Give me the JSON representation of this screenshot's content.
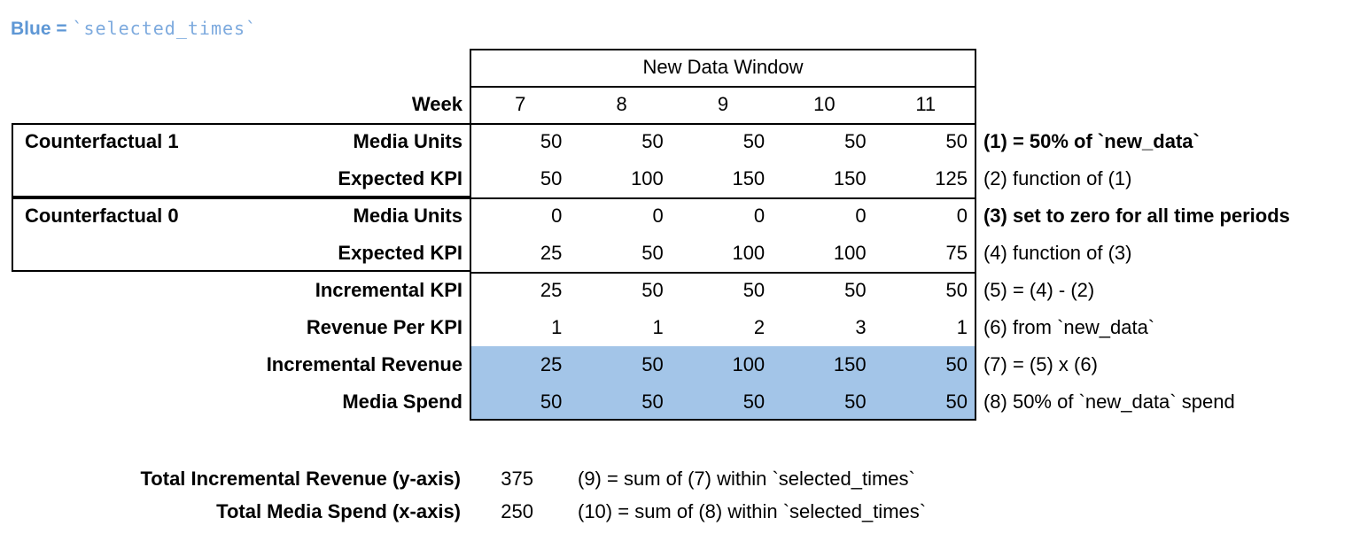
{
  "note": {
    "prefix": "Blue = ",
    "code": "`selected_times`"
  },
  "colors": {
    "note_prefix": "#5e97d5",
    "note_code": "#7daade",
    "highlight": "#a3c5e8",
    "border": "#000000",
    "text": "#000000",
    "background": "#ffffff"
  },
  "table": {
    "window_title": "New Data Window",
    "week_label": "Week",
    "weeks": [
      "7",
      "8",
      "9",
      "10",
      "11"
    ],
    "groups": [
      {
        "label": "Counterfactual 1"
      },
      {
        "label": "Counterfactual 0"
      }
    ],
    "rows": [
      {
        "label": "Media Units",
        "values": [
          "50",
          "50",
          "50",
          "50",
          "50"
        ],
        "annotation": "(1) = 50% of `new_data`",
        "annotation_bold": true,
        "highlight": false
      },
      {
        "label": "Expected KPI",
        "values": [
          "50",
          "100",
          "150",
          "150",
          "125"
        ],
        "annotation": "(2) function of (1)",
        "annotation_bold": false,
        "highlight": false
      },
      {
        "label": "Media Units",
        "values": [
          "0",
          "0",
          "0",
          "0",
          "0"
        ],
        "annotation": "(3) set to zero for all time periods",
        "annotation_bold": true,
        "highlight": false
      },
      {
        "label": "Expected KPI",
        "values": [
          "25",
          "50",
          "100",
          "100",
          "75"
        ],
        "annotation": "(4) function of (3)",
        "annotation_bold": false,
        "highlight": false
      },
      {
        "label": "Incremental KPI",
        "values": [
          "25",
          "50",
          "50",
          "50",
          "50"
        ],
        "annotation": "(5) = (4) - (2)",
        "annotation_bold": false,
        "highlight": false
      },
      {
        "label": "Revenue Per KPI",
        "values": [
          "1",
          "1",
          "2",
          "3",
          "1"
        ],
        "annotation": "(6) from `new_data`",
        "annotation_bold": false,
        "highlight": false
      },
      {
        "label": "Incremental Revenue",
        "values": [
          "25",
          "50",
          "100",
          "150",
          "50"
        ],
        "annotation": "(7) = (5) x (6)",
        "annotation_bold": false,
        "highlight": true
      },
      {
        "label": "Media Spend",
        "values": [
          "50",
          "50",
          "50",
          "50",
          "50"
        ],
        "annotation": "(8) 50% of `new_data` spend",
        "annotation_bold": false,
        "highlight": true
      }
    ]
  },
  "totals": [
    {
      "label": "Total Incremental Revenue (y-axis)",
      "value": "375",
      "annotation": "(9) = sum of (7) within `selected_times`"
    },
    {
      "label": "Total Media Spend (x-axis)",
      "value": "250",
      "annotation": "(10) = sum of (8) within `selected_times`"
    }
  ],
  "chart_data": {
    "type": "table",
    "title": "New Data Window",
    "columns": [
      "Week 7",
      "Week 8",
      "Week 9",
      "Week 10",
      "Week 11"
    ],
    "rows": [
      {
        "group": "Counterfactual 1",
        "name": "Media Units",
        "values": [
          50,
          50,
          50,
          50,
          50
        ]
      },
      {
        "group": "Counterfactual 1",
        "name": "Expected KPI",
        "values": [
          50,
          100,
          150,
          150,
          125
        ]
      },
      {
        "group": "Counterfactual 0",
        "name": "Media Units",
        "values": [
          0,
          0,
          0,
          0,
          0
        ]
      },
      {
        "group": "Counterfactual 0",
        "name": "Expected KPI",
        "values": [
          25,
          50,
          100,
          100,
          75
        ]
      },
      {
        "group": null,
        "name": "Incremental KPI",
        "values": [
          25,
          50,
          50,
          50,
          50
        ]
      },
      {
        "group": null,
        "name": "Revenue Per KPI",
        "values": [
          1,
          1,
          2,
          3,
          1
        ]
      },
      {
        "group": null,
        "name": "Incremental Revenue",
        "values": [
          25,
          50,
          100,
          150,
          50
        ],
        "highlighted": true
      },
      {
        "group": null,
        "name": "Media Spend",
        "values": [
          50,
          50,
          50,
          50,
          50
        ],
        "highlighted": true
      }
    ],
    "totals": {
      "Total Incremental Revenue (y-axis)": 375,
      "Total Media Spend (x-axis)": 250
    }
  }
}
